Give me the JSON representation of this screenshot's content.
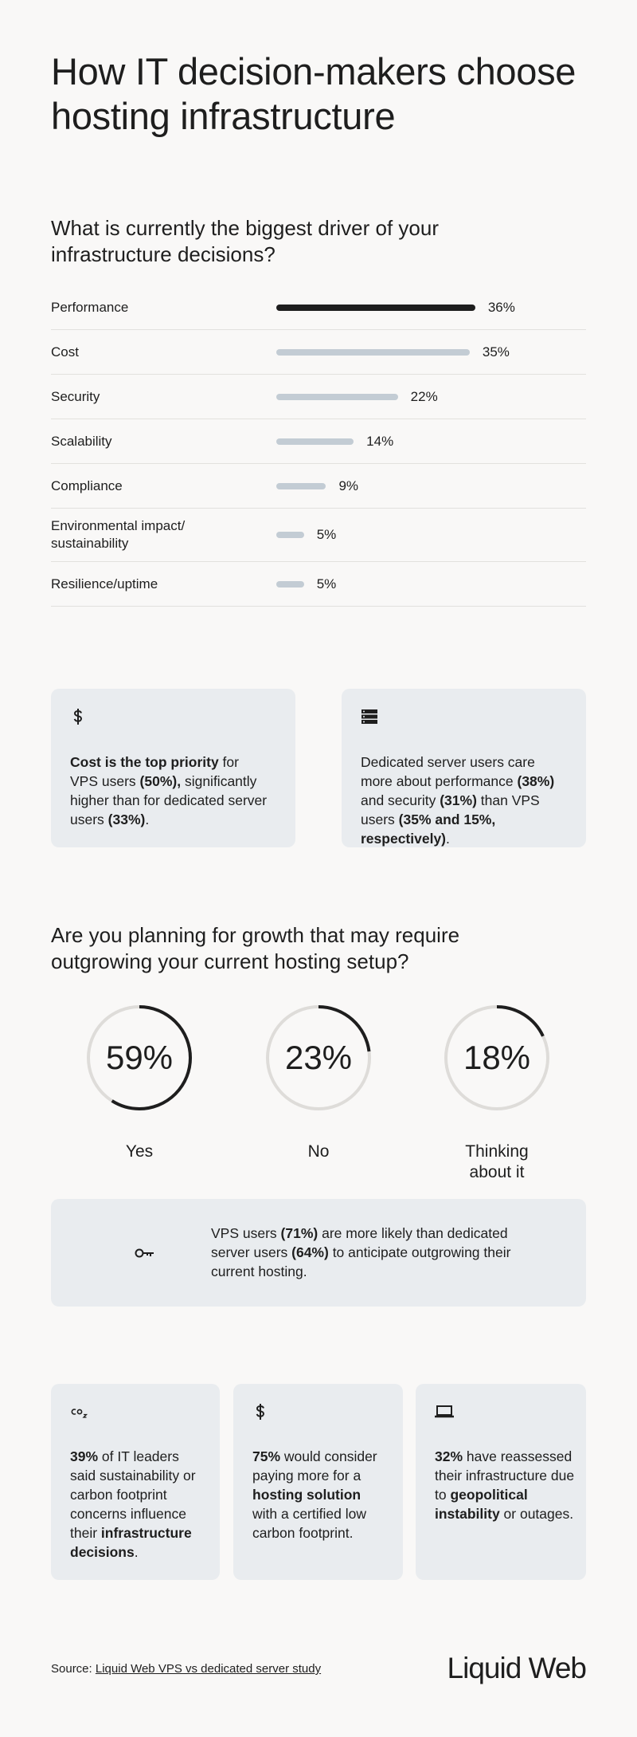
{
  "header": {
    "title": "How IT decision-makers choose hosting infrastructure"
  },
  "chart_data": [
    {
      "type": "hbar",
      "title": "What is currently the biggest driver of your infrastructure decisions?",
      "categories": [
        "Performance",
        "Cost",
        "Security",
        "Scalability",
        "Compliance",
        "Environmental impact/ sustainability",
        "Resilience/uptime"
      ],
      "values": [
        36,
        35,
        22,
        14,
        9,
        5,
        5
      ],
      "value_labels": [
        "36%",
        "35%",
        "22%",
        "14%",
        "9%",
        "5%",
        "5%"
      ],
      "colors": [
        "#1e1e1e",
        "#c3ccd4",
        "#c3ccd4",
        "#c3ccd4",
        "#c3ccd4",
        "#c3ccd4",
        "#c3ccd4"
      ],
      "xlim": [
        0,
        50
      ]
    },
    {
      "type": "donut",
      "title": "Are you planning for growth that may require outgrowing your current hosting setup?",
      "categories": [
        "Yes",
        "No",
        "Thinking about it"
      ],
      "values": [
        59,
        23,
        18
      ],
      "value_labels": [
        "59%",
        "23%",
        "18%"
      ],
      "color": "#1e1e1e",
      "track_color": "#dedcd9",
      "ylim": [
        0,
        100
      ]
    }
  ],
  "callouts": [
    {
      "segments": [
        {
          "text": "Cost is the top priority",
          "bold": true
        },
        {
          "text": " for VPS users "
        },
        {
          "text": "(50%),",
          "bold": true
        },
        {
          "text": " significantly higher than for dedicated server users "
        },
        {
          "text": "(33%)",
          "bold": true
        },
        {
          "text": "."
        }
      ]
    },
    {
      "segments": [
        {
          "text": "Dedicated server users care more about performance "
        },
        {
          "text": "(38%)",
          "bold": true
        },
        {
          "text": " and security "
        },
        {
          "text": "(31%)",
          "bold": true
        },
        {
          "text": " than VPS users "
        },
        {
          "text": "(35% and 15%, respectively)",
          "bold": true
        },
        {
          "text": "."
        }
      ]
    }
  ],
  "growth_note": {
    "segments": [
      {
        "text": "VPS users "
      },
      {
        "text": "(71%)",
        "bold": true
      },
      {
        "text": " are more likely than dedicated server users "
      },
      {
        "text": "(64%)",
        "bold": true
      },
      {
        "text": " to anticipate outgrowing their current hosting."
      }
    ]
  },
  "facts": [
    {
      "segments": [
        {
          "text": "39%",
          "bold": true
        },
        {
          "text": " of IT leaders said sustainability or carbon footprint concerns influence their "
        },
        {
          "text": "infrastructure decisions",
          "bold": true
        },
        {
          "text": "."
        }
      ]
    },
    {
      "segments": [
        {
          "text": "75%",
          "bold": true
        },
        {
          "text": " would consider paying more for a "
        },
        {
          "text": "hosting solution",
          "bold": true
        },
        {
          "text": " with a certified low carbon footprint."
        }
      ]
    },
    {
      "segments": [
        {
          "text": "32%",
          "bold": true
        },
        {
          "text": " have reassessed their infrastructure due to "
        },
        {
          "text": "geopolitical instability",
          "bold": true
        },
        {
          "text": " or outages."
        }
      ]
    }
  ],
  "footer": {
    "source_prefix": "Source:",
    "source_link": "Liquid Web VPS vs dedicated server study",
    "logo": "Liquid Web"
  }
}
